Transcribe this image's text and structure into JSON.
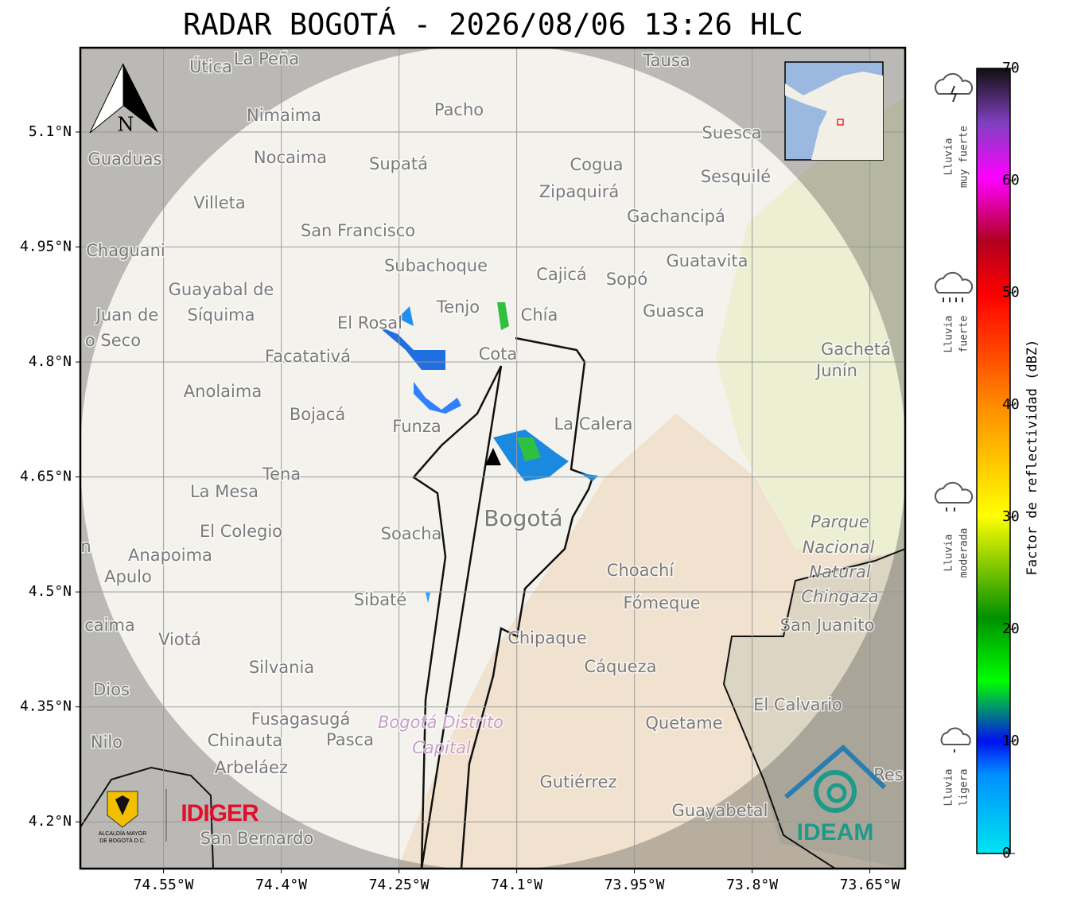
{
  "title": "RADAR BOGOTÁ - 2026/08/06 13:26 HLC",
  "compass": "N",
  "map": {
    "xlim": [
      -74.656,
      -73.605
    ],
    "ylim": [
      4.139,
      5.21
    ],
    "xticks": [
      {
        "value": -74.55,
        "label": "74.55°W"
      },
      {
        "value": -74.4,
        "label": "74.4°W"
      },
      {
        "value": -74.25,
        "label": "74.25°W"
      },
      {
        "value": -74.1,
        "label": "74.1°W"
      },
      {
        "value": -73.95,
        "label": "73.95°W"
      },
      {
        "value": -73.8,
        "label": "73.8°W"
      },
      {
        "value": -73.65,
        "label": "73.65°W"
      }
    ],
    "yticks": [
      {
        "value": 4.2,
        "label": "4.2°N"
      },
      {
        "value": 4.35,
        "label": "4.35°N"
      },
      {
        "value": 4.5,
        "label": "4.5°N"
      },
      {
        "value": 4.65,
        "label": "4.65°N"
      },
      {
        "value": 4.8,
        "label": "4.8°N"
      },
      {
        "value": 4.95,
        "label": "4.95°N"
      },
      {
        "value": 5.1,
        "label": "5.1°N"
      }
    ],
    "places": [
      "Útica",
      "La Peña",
      "Tausa",
      "Pacho",
      "Nimaima",
      "Suesca",
      "Guaduas",
      "Nocaima",
      "Supatá",
      "Cogua",
      "Sesquilé",
      "Zipaquirá",
      "Villeta",
      "Gachancipá",
      "San Francisco",
      "Chaguani",
      "Guatavita",
      "Subachoque",
      "Cajicá",
      "Sopó",
      "Guayabal de",
      "Síquima",
      "Tenjo",
      "Chía",
      "Guasca",
      "Juan de",
      "El Rosal",
      "o Seco",
      "Facatativá",
      "Cota",
      "Gachetá",
      "Junín",
      "Anolaima",
      "Bojacá",
      "Funza",
      "La Calera",
      "Tena",
      "La Mesa",
      "Bogotá",
      "Parque",
      "Nacional",
      "Natural",
      "Chingaza",
      "El Colegio",
      "Soacha",
      "Anapoima",
      "Apulo",
      "Choachí",
      "Sibaté",
      "Fómeque",
      "San Juanito",
      "caima",
      "Viotá",
      "Chipaque",
      "Cáqueza",
      "Silvania",
      "Dios",
      "El Calvario",
      "Fusagasugá",
      "Bogotá Distrito",
      "Capital",
      "Quetame",
      "Nilo",
      "Chinauta",
      "Pasca",
      "Arbeláez",
      "Gutiérrez",
      "Guayabetal",
      "San Bernardo",
      "Res",
      "n"
    ]
  },
  "colorbar": {
    "label": "Factor de reflectividad (dBZ)",
    "lim": [
      0,
      70
    ],
    "ticks": [
      0,
      10,
      20,
      30,
      40,
      50,
      60,
      70
    ]
  },
  "legend": [
    [
      "Lluvia",
      "muy fuerte"
    ],
    [
      "Lluvia",
      "fuerte"
    ],
    [
      "Lluvia",
      "moderada"
    ],
    [
      "Lluvia",
      "ligera"
    ]
  ],
  "logos": {
    "alcaldia": [
      "ALCALDÍA MAYOR",
      "DE BOGOTÁ D.C."
    ],
    "idiger": "IDIGER",
    "ideam": "IDEAM"
  }
}
